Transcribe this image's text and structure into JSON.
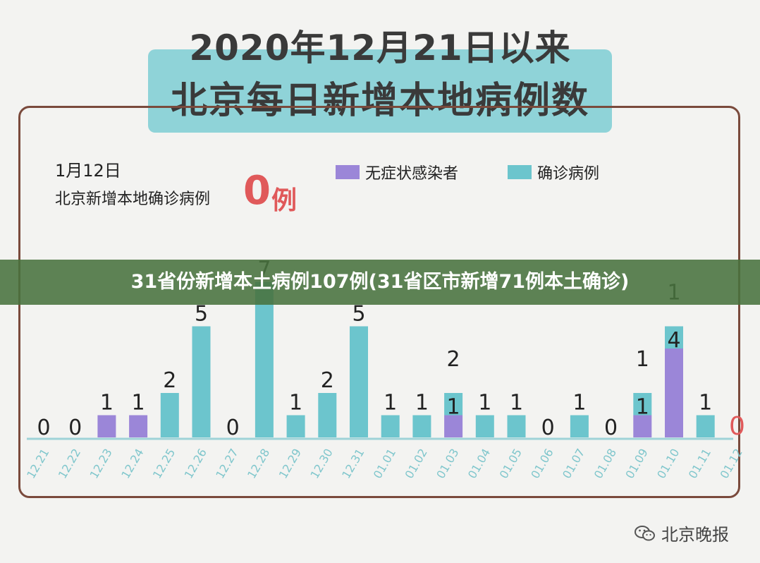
{
  "header": {
    "title_line1": "2020年12月21日以来",
    "title_line2": "北京每日新增本地病例数"
  },
  "summary": {
    "date": "1月12日",
    "caption": "北京新增本地确诊病例",
    "count": "0",
    "unit": "例"
  },
  "legend": [
    {
      "label": "无症状感染者",
      "color": "#9b86d8"
    },
    {
      "label": "确诊病例",
      "color": "#6cc5cd"
    }
  ],
  "banner": {
    "text": "31省份新增本土病例107例(31省区市新增71例本土确诊)"
  },
  "watermark": {
    "text": "北京晚报",
    "icon": "wechat-icon"
  },
  "colors": {
    "asymptomatic": "#9b86d8",
    "confirmed": "#6cc5cd",
    "highlight": "#e0595a",
    "axis_label": "#7fc6cc"
  },
  "chart_data": {
    "type": "bar",
    "stacked": true,
    "categories": [
      "12.21",
      "12.22",
      "12.23",
      "12.24",
      "12.25",
      "12.26",
      "12.27",
      "12.28",
      "12.29",
      "12.30",
      "12.31",
      "01.01",
      "01.02",
      "01.03",
      "01.04",
      "01.05",
      "01.06",
      "01.07",
      "01.08",
      "01.09",
      "01.10",
      "01.11",
      "01.12"
    ],
    "series": [
      {
        "name": "无症状感染者",
        "values": [
          0,
          0,
          1,
          1,
          0,
          0,
          0,
          0,
          0,
          0,
          0,
          0,
          0,
          1,
          0,
          0,
          0,
          0,
          0,
          1,
          4,
          0,
          0
        ]
      },
      {
        "name": "确诊病例",
        "values": [
          0,
          0,
          0,
          0,
          2,
          5,
          0,
          7,
          1,
          2,
          5,
          1,
          1,
          1,
          1,
          1,
          0,
          1,
          0,
          1,
          1,
          1,
          0
        ]
      }
    ],
    "labels": [
      {
        "top": "0"
      },
      {
        "top": "0"
      },
      {
        "top": "1"
      },
      {
        "top": "1"
      },
      {
        "top": "2"
      },
      {
        "top": "5"
      },
      {
        "top": "0"
      },
      {
        "top": "7"
      },
      {
        "top": "1"
      },
      {
        "top": "2"
      },
      {
        "top": "5"
      },
      {
        "top": "1"
      },
      {
        "top": "1"
      },
      {
        "top": "2",
        "inner": "1"
      },
      {
        "top": "1"
      },
      {
        "top": "1"
      },
      {
        "top": "0"
      },
      {
        "top": "1"
      },
      {
        "top": "0"
      },
      {
        "top": "1",
        "inner": "1"
      },
      {
        "top": "1",
        "inner": "4"
      },
      {
        "top": "1"
      },
      {
        "top": "0",
        "highlight": true
      }
    ],
    "ylim": [
      0,
      8
    ]
  }
}
